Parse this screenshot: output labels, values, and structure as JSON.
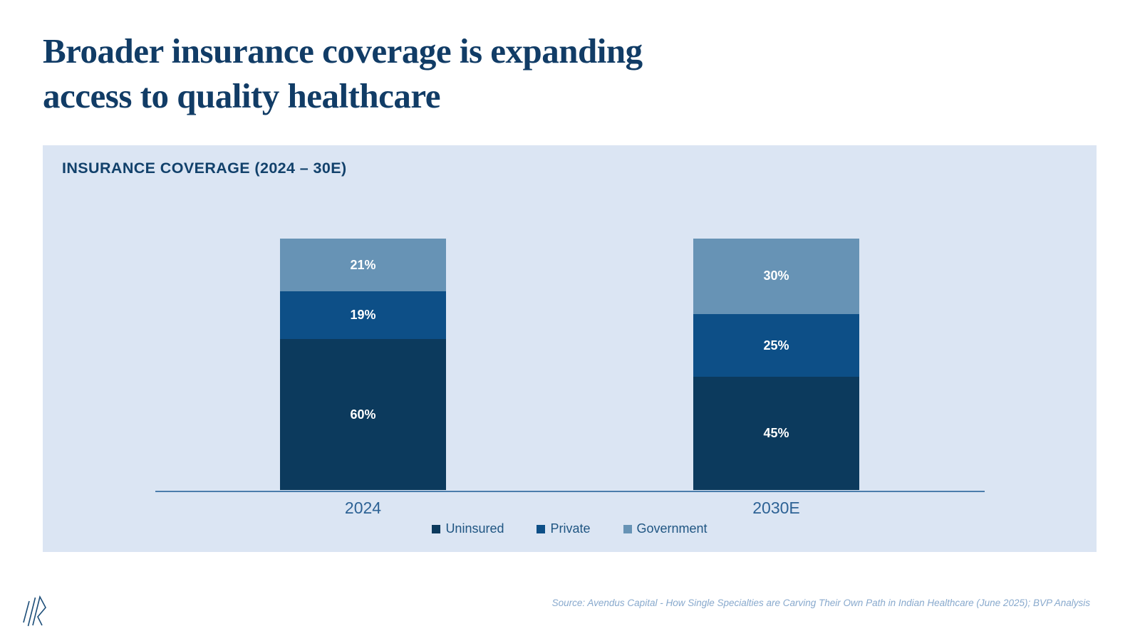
{
  "slide": {
    "title_line1": "Broader insurance coverage is expanding",
    "title_line2": "access to quality healthcare",
    "source": "Source: Avendus Capital - How Single Specialties are Carving Their Own Path in Indian Healthcare (June 2025); BVP Analysis"
  },
  "chart_data": {
    "type": "bar",
    "stacked": true,
    "title": "INSURANCE COVERAGE (2024 – 30E)",
    "categories": [
      "2024",
      "2030E"
    ],
    "series": [
      {
        "name": "Uninsured",
        "color": "#0c3a5d",
        "values": [
          60,
          45
        ]
      },
      {
        "name": "Private",
        "color": "#0d4f87",
        "values": [
          19,
          25
        ]
      },
      {
        "name": "Government",
        "color": "#6793b5",
        "values": [
          21,
          30
        ]
      }
    ],
    "value_suffix": "%",
    "ylim": [
      0,
      100
    ],
    "grid": false,
    "legend_position": "bottom",
    "panel_background": "#dbe5f3",
    "axis_line_color": "#4b7dac"
  }
}
